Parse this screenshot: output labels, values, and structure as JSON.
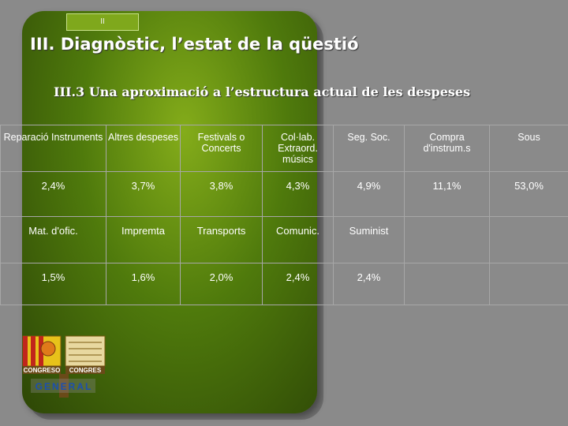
{
  "slide": {
    "tab_label": "II",
    "title": "III. Diagnòstic, l’estat de la qüestió",
    "subtitle": "III.3 Una aproximació a l’estructura actual de les despeses"
  },
  "table": {
    "rows": [
      [
        "Reparació Instruments",
        "Altres despeses",
        "Festivals o Concerts",
        "Col·lab. Extraord. músics",
        "Seg. Soc.",
        "Compra d'instrum.s",
        "Sous"
      ],
      [
        "2,4%",
        "3,7%",
        "3,8%",
        "4,3%",
        "4,9%",
        "11,1%",
        "53,0%"
      ],
      [
        "Mat. d'ofic.",
        "Impremta",
        "Transports",
        "Comunic.",
        "Suminist",
        "",
        ""
      ],
      [
        "1,5%",
        "1,6%",
        "2,0%",
        "2,4%",
        "2,4%",
        "",
        ""
      ]
    ]
  },
  "logo": {
    "text_congreso": "CONGRESO",
    "text_congres": "CONGRES",
    "text_general": "GENERAL",
    "colors": {
      "yellow": "#e8c21a",
      "red": "#c0261b",
      "orange": "#e07a1a",
      "blue": "#1c4fb0"
    }
  }
}
